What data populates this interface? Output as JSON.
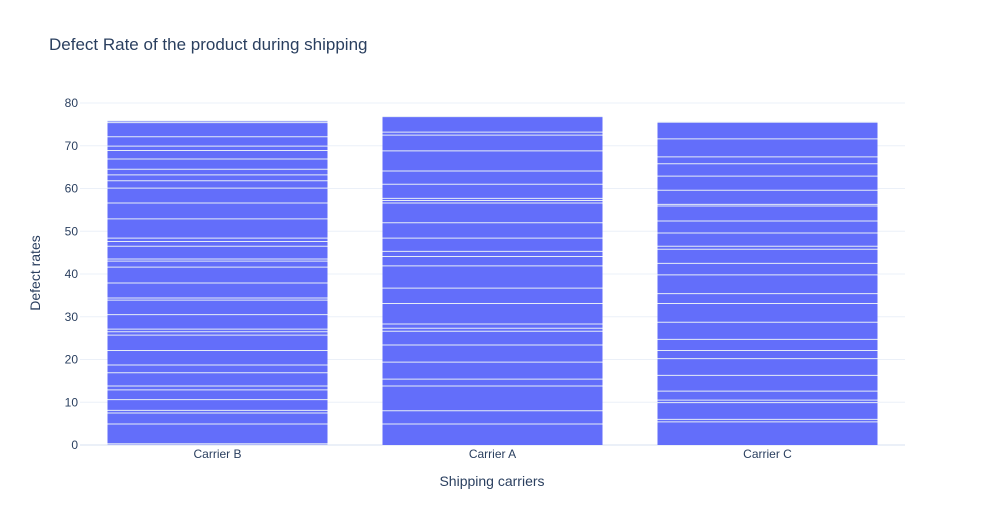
{
  "chart_data": {
    "type": "bar",
    "title": "Defect Rate of the product during shipping",
    "xlabel": "Shipping carriers",
    "ylabel": "Defect rates",
    "categories": [
      "Carrier B",
      "Carrier A",
      "Carrier C"
    ],
    "values": [
      75.8,
      76.8,
      75.5
    ],
    "ylim": [
      0,
      80
    ],
    "yticks": [
      0,
      10,
      20,
      30,
      40,
      50,
      60,
      70,
      80
    ],
    "grid": true,
    "bar_color": "#636efa",
    "segment_line_color": "#e5ecf6",
    "segments": [
      [
        0.2,
        0.3,
        4.9,
        7.5,
        8.1,
        10.6,
        12.9,
        13.8,
        16.9,
        18.7,
        22.1,
        25.7,
        26.5,
        27.1,
        30.5,
        33.9,
        34.4,
        37.9,
        41.6,
        43.0,
        43.5,
        46.5,
        47.6,
        48.4,
        52.9,
        56.6,
        60.1,
        61.8,
        63.2,
        64.5,
        66.9,
        68.9,
        69.9,
        72.1,
        75.4,
        75.8
      ],
      [
        4.9,
        8.0,
        13.8,
        15.4,
        19.4,
        23.4,
        26.6,
        27.3,
        28.3,
        33.1,
        36.7,
        41.9,
        44.1,
        45.3,
        48.4,
        52.0,
        56.6,
        57.2,
        57.7,
        61.0,
        64.1,
        68.8,
        72.5,
        73.2,
        76.8
      ],
      [
        5.4,
        6.0,
        9.9,
        10.5,
        12.6,
        16.3,
        20.2,
        22.1,
        24.7,
        28.7,
        33.1,
        35.4,
        39.8,
        42.5,
        45.8,
        46.5,
        49.6,
        52.4,
        55.9,
        56.3,
        59.6,
        62.9,
        65.8,
        67.4,
        71.6,
        75.5
      ]
    ]
  }
}
